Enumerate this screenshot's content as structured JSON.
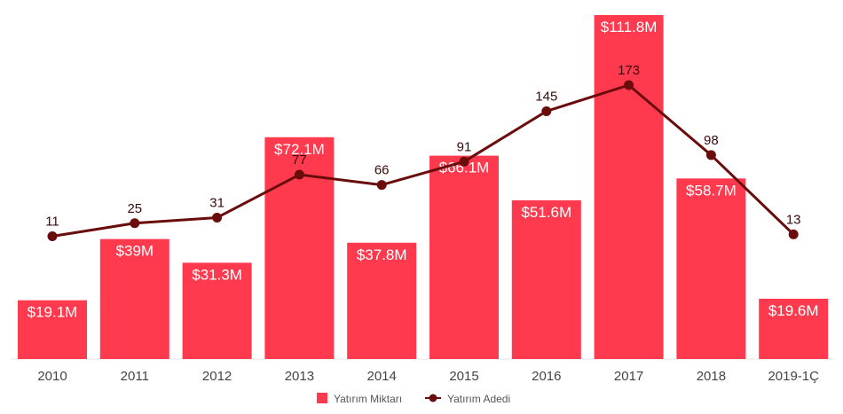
{
  "chart_data": {
    "type": "bar",
    "categories": [
      "2010",
      "2011",
      "2012",
      "2013",
      "2014",
      "2015",
      "2016",
      "2017",
      "2018",
      "2019-1Ç"
    ],
    "series": [
      {
        "name": "Yatırım Miktarı",
        "kind": "bar",
        "values": [
          19.1,
          39,
          31.3,
          72.1,
          37.8,
          66.1,
          51.6,
          111.8,
          58.7,
          19.6
        ],
        "labels": [
          "$19.1M",
          "$39M",
          "$31.3M",
          "$72.1M",
          "$37.8M",
          "$66.1M",
          "$51.6M",
          "$111.8M",
          "$58.7M",
          "$19.6M"
        ],
        "color": "#ff3a4f"
      },
      {
        "name": "Yatırım Adedi",
        "kind": "line",
        "values": [
          11,
          25,
          31,
          77,
          66,
          91,
          145,
          173,
          98,
          13
        ],
        "labels": [
          "11",
          "25",
          "31",
          "77",
          "66",
          "91",
          "145",
          "173",
          "98",
          "13"
        ],
        "color": "#6b0c0c"
      }
    ],
    "legend": "bottom-center",
    "grid": false
  }
}
